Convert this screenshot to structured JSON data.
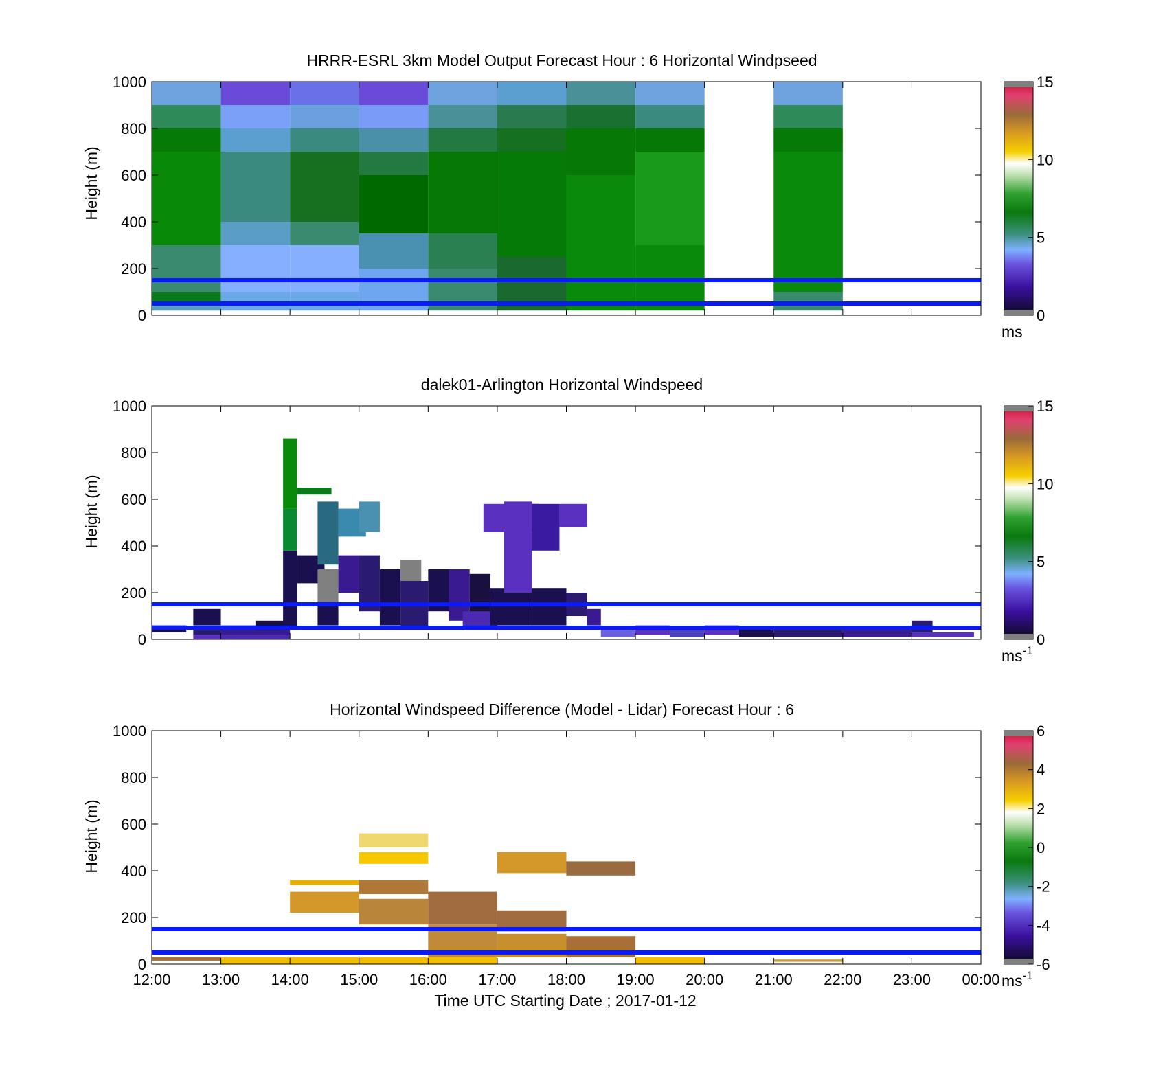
{
  "time_ticks": [
    "12:00",
    "13:00",
    "14:00",
    "15:00",
    "16:00",
    "17:00",
    "18:00",
    "19:00",
    "20:00",
    "21:00",
    "22:00",
    "23:00",
    "00:00"
  ],
  "xlabel": "Time UTC  Starting Date ; 2017-01-12",
  "chart_data": [
    {
      "type": "heatmap",
      "title": "HRRR-ESRL 3km Model Output   Forecast Hour : 6 Horizontal Windpseed",
      "ylabel": "Height (m)",
      "ylim": [
        0,
        1000
      ],
      "yticks": [
        "0",
        "200",
        "400",
        "600",
        "800",
        "1000"
      ],
      "colorbar": {
        "label": "ms",
        "superscript": "",
        "range": [
          0,
          15
        ],
        "ticks": [
          "0",
          "5",
          "10",
          "15"
        ]
      },
      "reference_lines_m": [
        150,
        50
      ],
      "grid": false
    },
    {
      "type": "heatmap",
      "title": "dalek01-Arlington  Horizontal Windspeed",
      "ylabel": "Height (m)",
      "ylim": [
        0,
        1000
      ],
      "yticks": [
        "0",
        "200",
        "400",
        "600",
        "800",
        "1000"
      ],
      "colorbar": {
        "label": "ms",
        "superscript": "-1",
        "range": [
          0,
          15
        ],
        "ticks": [
          "0",
          "5",
          "10",
          "15"
        ]
      },
      "reference_lines_m": [
        150,
        50
      ],
      "grid": false
    },
    {
      "type": "heatmap",
      "title": "Horizontal Windspeed Difference (Model - Lidar) Forecast Hour : 6",
      "ylabel": "Height (m)",
      "ylim": [
        0,
        1000
      ],
      "yticks": [
        "0",
        "200",
        "400",
        "600",
        "800",
        "1000"
      ],
      "colorbar": {
        "label": "ms",
        "superscript": "-1",
        "range": [
          -6,
          6
        ],
        "ticks": [
          "-6",
          "-4",
          "-2",
          "0",
          "2",
          "4",
          "6"
        ]
      },
      "reference_lines_m": [
        150,
        50
      ],
      "grid": false
    }
  ]
}
